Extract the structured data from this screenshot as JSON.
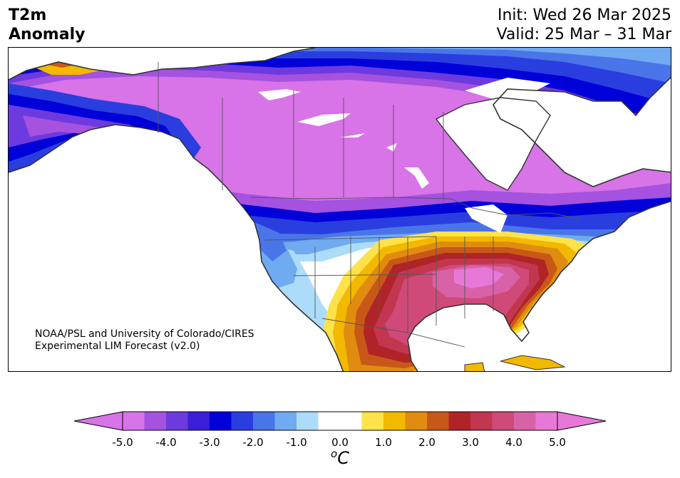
{
  "header": {
    "title_line1": "T2m",
    "title_line2": "Anomaly",
    "init": "Init: Wed 26 Mar 2025",
    "valid": "Valid: 25 Mar – 31 Mar"
  },
  "credit": {
    "line1": "NOAA/PSL and University of Colorado/CIRES",
    "line2": "Experimental LIM Forecast (v2.0)"
  },
  "colorbar": {
    "unit_sup": "o",
    "unit": "C",
    "ticks": [
      "-5.0",
      "-4.0",
      "-3.0",
      "-2.0",
      "-1.0",
      "0.0",
      "1.0",
      "2.0",
      "3.0",
      "4.0",
      "5.0"
    ],
    "colors": [
      "#d873e8",
      "#a552e0",
      "#6d3adf",
      "#3a1ed8",
      "#0000d8",
      "#2a3ee0",
      "#4a75e8",
      "#70aaf0",
      "#acdcfa",
      "#ffffff",
      "#ffffff",
      "#fde24a",
      "#f3b800",
      "#e08c10",
      "#c85818",
      "#b02428",
      "#c23650",
      "#cf4a78",
      "#d862a8",
      "#e878d8"
    ],
    "under_color": "#d873e8",
    "over_color": "#e878d8"
  },
  "map": {
    "region": "North America",
    "colors": {
      "ocean": "#ffffff",
      "coast": "#333333",
      "border": "#444444"
    }
  }
}
